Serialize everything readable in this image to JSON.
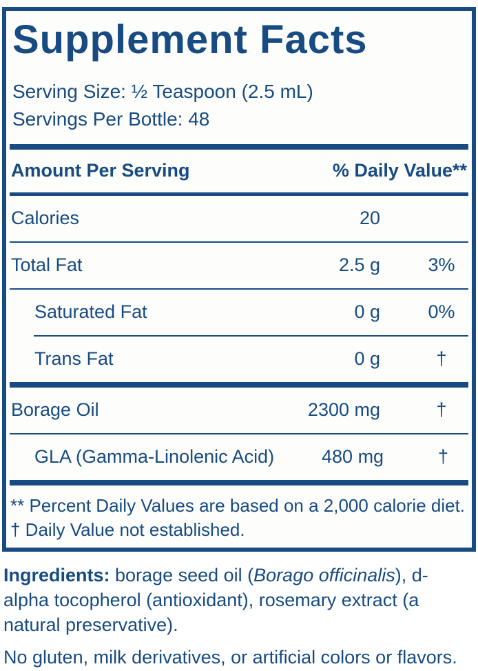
{
  "colors": {
    "navy": "#174b82",
    "background": "#fdfdfc"
  },
  "panel": {
    "title": "Supplement Facts",
    "serving_size": "Serving Size: ½ Teaspoon (2.5 mL)",
    "servings_per_bottle": "Servings Per Bottle: 48",
    "header": {
      "amount_label": "Amount Per Serving",
      "daily_value_label": "% Daily Value**"
    },
    "rows": [
      {
        "name": "Calories",
        "amount": "20",
        "dv": "",
        "indent": false,
        "divider_after": "thin"
      },
      {
        "name": "Total Fat",
        "amount": "2.5 g",
        "dv": "3%",
        "indent": false,
        "divider_after": "thin"
      },
      {
        "name": "Saturated Fat",
        "amount": "0 g",
        "dv": "0%",
        "indent": true,
        "divider_after": "thin-indent"
      },
      {
        "name": "Trans Fat",
        "amount": "0 g",
        "dv": "†",
        "indent": true,
        "divider_after": "bar"
      },
      {
        "name": "Borage Oil",
        "amount": "2300 mg",
        "dv": "†",
        "indent": false,
        "divider_after": "thin"
      },
      {
        "name": "GLA (Gamma-Linolenic Acid)",
        "amount": "480 mg",
        "dv": "†",
        "indent": true,
        "divider_after": "bar"
      }
    ],
    "footnotes": [
      "** Percent Daily Values are based on a 2,000 calorie diet.",
      "† Daily Value not established."
    ]
  },
  "ingredients": {
    "parts": [
      {
        "text": "Ingredients: ",
        "style": "bold"
      },
      {
        "text": "borage seed oil (",
        "style": "normal"
      },
      {
        "text": "Borago officinalis",
        "style": "italic"
      },
      {
        "text": "), d-alpha tocopherol (antioxidant), rosemary extract (a natural preservative).",
        "style": "normal"
      }
    ]
  },
  "allergen_note": "No gluten, milk derivatives, or artificial colors or flavors."
}
